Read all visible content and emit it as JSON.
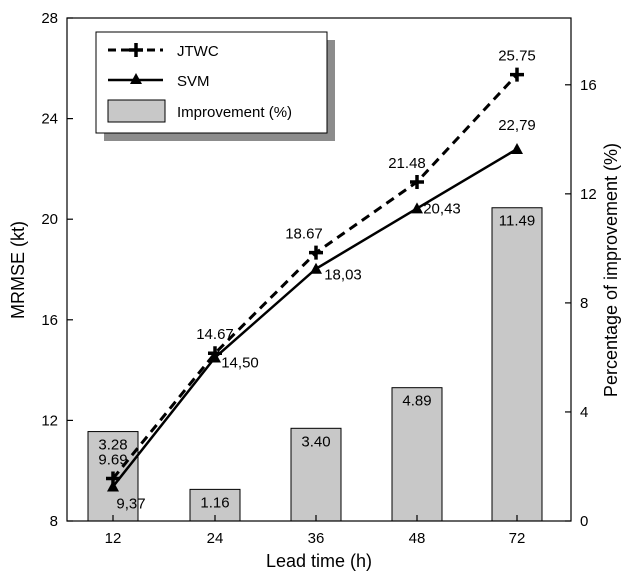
{
  "chart_data": {
    "type": "bar+line",
    "categories": [
      "12",
      "24",
      "36",
      "48",
      "72"
    ],
    "xlabel": "Lead time (h)",
    "ylabel": "MRMSE (kt)",
    "y2label": "Percentage of improvement (%)",
    "ylim": [
      8,
      28
    ],
    "yticks": [
      "8",
      "12",
      "16",
      "20",
      "24",
      "28"
    ],
    "y2lim": [
      0,
      18.45
    ],
    "y2ticks": [
      "0",
      "4",
      "8",
      "12",
      "16"
    ],
    "series": [
      {
        "name": "JTWC",
        "kind": "line",
        "style": "dashed",
        "marker": "plus",
        "axis": "left",
        "values": [
          9.69,
          14.67,
          18.67,
          21.48,
          25.75
        ],
        "labels": [
          "9.69",
          "14.67",
          "18.67",
          "21.48",
          "25.75"
        ]
      },
      {
        "name": "SVM",
        "kind": "line",
        "style": "solid",
        "marker": "triangle",
        "axis": "left",
        "values": [
          9.37,
          14.5,
          18.03,
          20.43,
          22.79
        ],
        "labels": [
          "9,37",
          "14,50",
          "18,03",
          "20,43",
          "22,79"
        ]
      },
      {
        "name": "Improvement (%)",
        "kind": "bar",
        "axis": "right",
        "values": [
          3.28,
          1.16,
          3.4,
          4.89,
          11.49
        ],
        "labels": [
          "3.28",
          "1.16",
          "3.40",
          "4.89",
          "11.49"
        ]
      }
    ],
    "legend_position": "top-left",
    "grid": false,
    "colors": {
      "bar_fill": "#c8c8c8",
      "line": "#000000"
    }
  }
}
